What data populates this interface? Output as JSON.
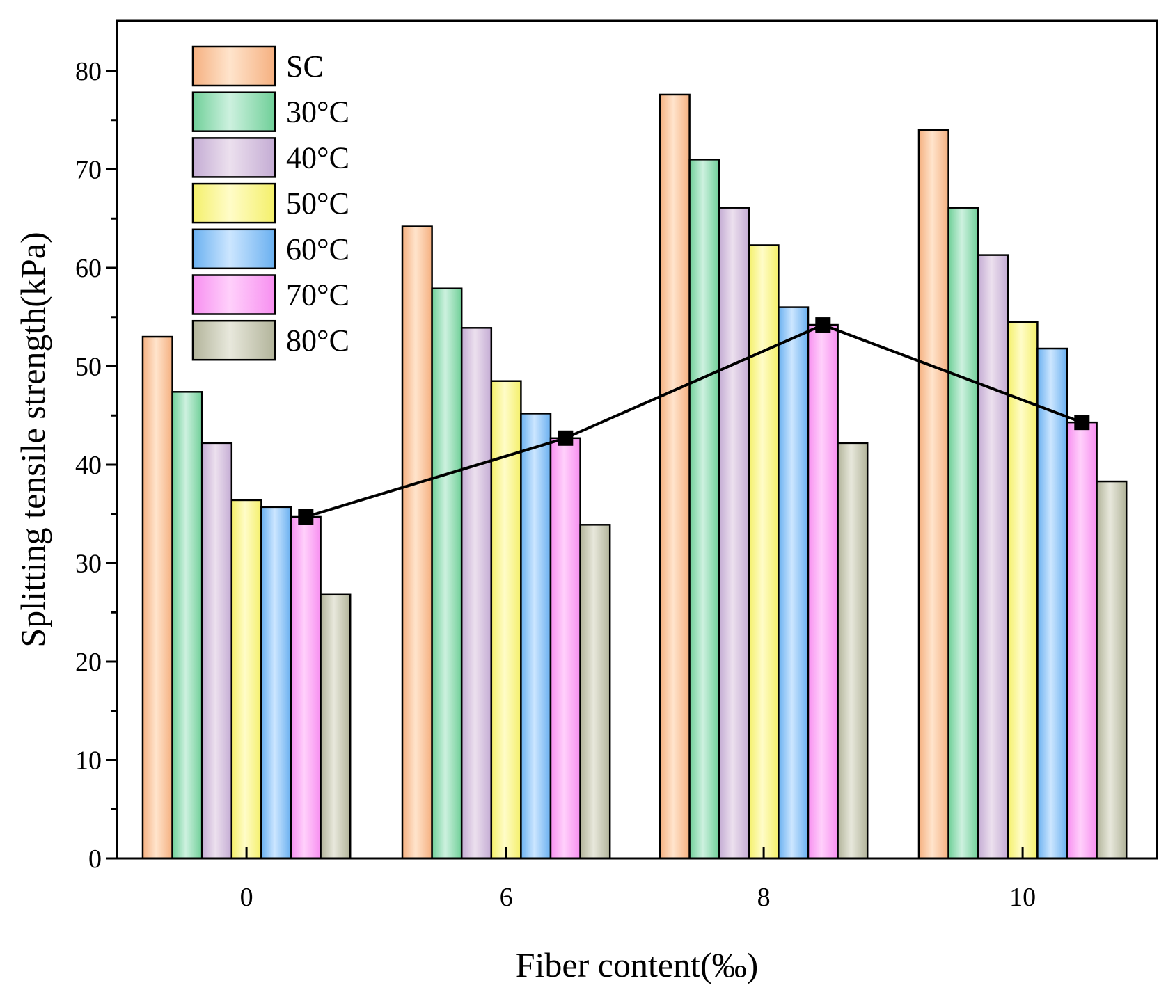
{
  "chart_data": {
    "type": "bar",
    "title": "",
    "xlabel": "Fiber content(‰)",
    "ylabel": "Splitting tensile strength(kPa)",
    "ylim": [
      0,
      85
    ],
    "yticks": [
      0,
      10,
      20,
      30,
      40,
      50,
      60,
      70,
      80
    ],
    "categories": [
      "0",
      "6",
      "8",
      "10"
    ],
    "series": [
      {
        "name": "SC",
        "values": [
          53.0,
          64.2,
          77.6,
          74.0
        ],
        "color_light": "#ffe4cc",
        "color_dark": "#f5b080"
      },
      {
        "name": "30°C",
        "values": [
          47.4,
          57.9,
          71.0,
          66.1
        ],
        "color_light": "#cdf1df",
        "color_dark": "#6fcf98"
      },
      {
        "name": "40°C",
        "values": [
          42.2,
          53.9,
          66.1,
          61.3
        ],
        "color_light": "#ece0ee",
        "color_dark": "#c4acd4"
      },
      {
        "name": "50°C",
        "values": [
          36.4,
          48.5,
          62.3,
          54.5
        ],
        "color_light": "#fffcc8",
        "color_dark": "#f4f06a"
      },
      {
        "name": "60°C",
        "values": [
          35.7,
          45.2,
          56.0,
          51.8
        ],
        "color_light": "#cce6ff",
        "color_dark": "#6ab0f0"
      },
      {
        "name": "70°C",
        "values": [
          34.7,
          42.7,
          54.2,
          44.3
        ],
        "color_light": "#ffd0fb",
        "color_dark": "#f78ff0"
      },
      {
        "name": "80°C",
        "values": [
          26.8,
          33.9,
          42.2,
          38.3
        ],
        "color_light": "#e8e8dc",
        "color_dark": "#b2b49a"
      }
    ],
    "line_series": {
      "name": "70°C",
      "values": [
        34.7,
        42.7,
        54.2,
        44.3
      ],
      "color": "#000000",
      "marker": "square"
    },
    "legend": "top-left",
    "grid": false
  }
}
